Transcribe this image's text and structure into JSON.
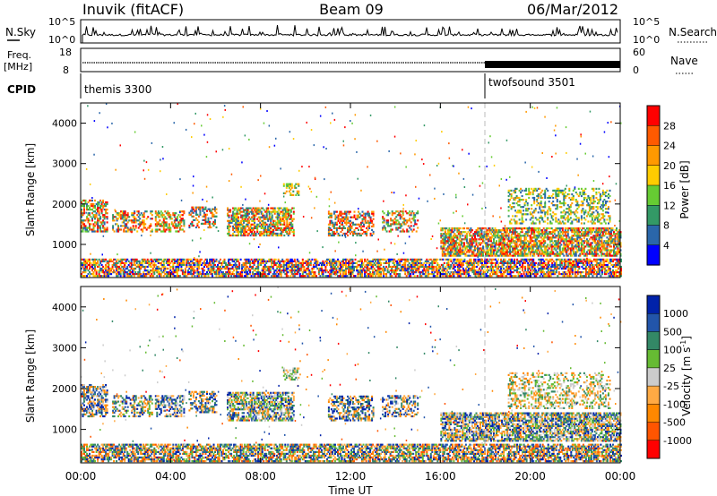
{
  "header": {
    "station": "Inuvik (fitACF)",
    "beam": "Beam 09",
    "date": "06/Mar/2012"
  },
  "chart_data": [
    {
      "type": "line",
      "panel": "N.Sky / N.Search",
      "left_label": "N.Sky",
      "right_label": "N.Search",
      "left_ticks": [
        "10^5",
        "10^0"
      ],
      "right_ticks": [
        "10^5",
        "10^0"
      ]
    },
    {
      "type": "line",
      "panel": "Freq / Nave",
      "left_label": "Freq.",
      "left_unit": "[MHz]",
      "right_label": "Nave",
      "left_ticks": [
        "18",
        "8"
      ],
      "right_ticks": [
        "60",
        "0"
      ]
    },
    {
      "type": "table",
      "panel": "CPID",
      "label": "CPID",
      "modes": [
        {
          "name": "themis 3300",
          "start_hour": 0
        },
        {
          "name": "twofsound 3501",
          "start_hour": 18
        }
      ]
    },
    {
      "type": "heatmap",
      "panel": "power",
      "ylabel": "Slant Range [km]",
      "ylim": [
        180,
        4500
      ],
      "yticks": [
        "1000",
        "2000",
        "3000",
        "4000"
      ],
      "colorbar_label": "Power [dB]",
      "colorbar_ticks": [
        "28",
        "24",
        "20",
        "16",
        "12",
        "8",
        "4"
      ],
      "colors": [
        "#ff0000",
        "#ff5a00",
        "#ff9900",
        "#ffcc00",
        "#66cc33",
        "#339966",
        "#2a66aa",
        "#0000ff"
      ]
    },
    {
      "type": "heatmap",
      "panel": "velocity",
      "ylabel": "Slant Range [km]",
      "ylim": [
        180,
        4500
      ],
      "yticks": [
        "1000",
        "2000",
        "3000",
        "4000"
      ],
      "colorbar_label": "Velocity [m s^-1]",
      "colorbar_ticks": [
        "1000",
        "500",
        "100",
        "25",
        "-25",
        "-100",
        "-500",
        "-1000"
      ],
      "colors": [
        "#0022aa",
        "#2255aa",
        "#338866",
        "#66bb33",
        "#cccccc",
        "#ffaa44",
        "#ff8800",
        "#ff5500",
        "#ff0000"
      ]
    }
  ],
  "xaxis": {
    "label": "Time UT",
    "ticks": [
      "00:00",
      "04:00",
      "08:00",
      "12:00",
      "16:00",
      "20:00",
      "00:00"
    ]
  }
}
